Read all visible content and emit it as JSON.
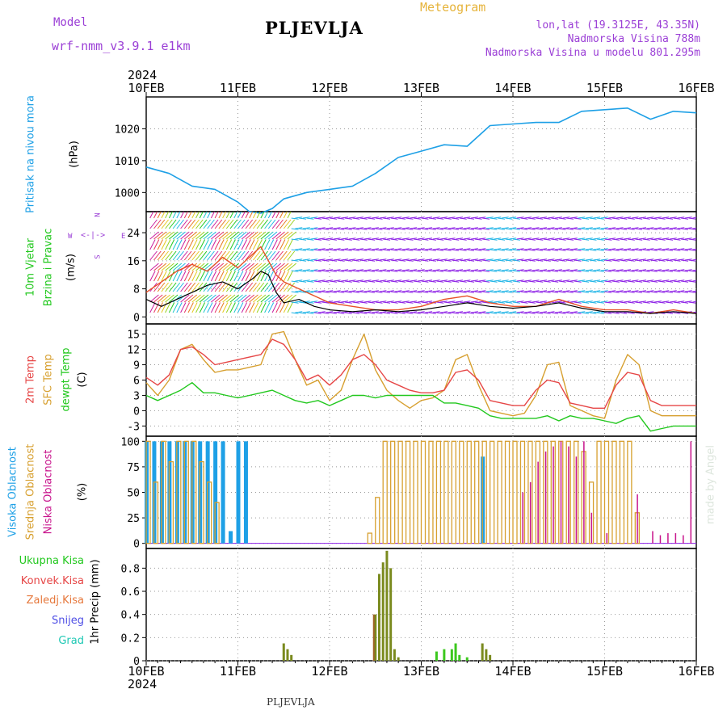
{
  "header": {
    "model_label": "Model",
    "model_name": "wrf-nmm_v3.9.1 e1km",
    "city": "PLJEVLJA",
    "chart_title": "Meteogram",
    "coords": "lon,lat (19.3125E, 43.35N)",
    "altitude": "Nadmorska Visina 788m",
    "model_altitude": "Nadmorska Visina u modelu 801.295m",
    "year_top": "2024",
    "year_bottom": "2024",
    "footer_city": "PLJEVLJA",
    "credit": "made by Angel"
  },
  "colors": {
    "pressure": "#1ea0e6",
    "t2m": "#e64646",
    "tsfc": "#d7a030",
    "dewpoint": "#22c81e",
    "cloud_high": "#1ea0e6",
    "cloud_mid": "#d7a030",
    "cloud_low": "#c8148c",
    "precip_total": "#7a8a1e",
    "precip_conv": "#a06428",
    "precip_green": "#3cc81e",
    "wind_purple": "#8c1ee6",
    "wind_cyan": "#1eb4e6",
    "gust": "#e65028"
  },
  "axes": {
    "dates": [
      "10FEB",
      "11FEB",
      "12FEB",
      "13FEB",
      "14FEB",
      "15FEB",
      "16FEB"
    ]
  },
  "panels": {
    "pressure": {
      "labels": [
        "Pritisak na nivou mora",
        "(hPa)"
      ],
      "ticks": [
        "1000",
        "1010",
        "1020"
      ]
    },
    "wind": {
      "labels": [
        "10m Vjetar",
        "Brzina i Pravac",
        "(m/s)"
      ],
      "ticks": [
        "0",
        "8",
        "16",
        "24"
      ],
      "rose": {
        "n": "N",
        "s": "S",
        "w": "W",
        "e": "E"
      }
    },
    "temp": {
      "labels": [
        "2m Temp",
        "SFC Temp",
        "dewpt Temp",
        "(C)"
      ],
      "ticks": [
        "-3",
        "0",
        "3",
        "6",
        "9",
        "12",
        "15"
      ]
    },
    "cloud": {
      "labels": [
        "Visoka Oblacnost",
        "Srednja Oblacnost",
        "Niska Oblacnost",
        "(%)"
      ],
      "ticks": [
        "0",
        "25",
        "50",
        "75",
        "100"
      ]
    },
    "precip": {
      "legend": [
        "Ukupna Kisa",
        "Konvek.Kisa",
        "Zaledj.Kisa",
        "Snijeg",
        "Grad"
      ],
      "ylabel": "1hr Precip (mm)",
      "ticks": [
        "0",
        "0.2",
        "0.4",
        "0.6",
        "0.8"
      ]
    }
  },
  "chart_data": [
    {
      "type": "line",
      "panel": "pressure",
      "ylabel": "(hPa)",
      "ylim": [
        994,
        1030
      ],
      "x_hours": [
        0,
        6,
        12,
        18,
        24,
        27,
        30,
        33,
        36,
        42,
        48,
        54,
        60,
        66,
        72,
        78,
        84,
        90,
        96,
        102,
        108,
        114,
        120,
        126,
        132,
        138,
        144
      ],
      "series": [
        {
          "name": "Pritisak na nivou mora",
          "values": [
            1008,
            1006,
            1002,
            1001,
            997,
            994,
            993.5,
            995,
            998,
            1000,
            1001,
            1002,
            1006,
            1011,
            1013,
            1015,
            1014.5,
            1021,
            1021.5,
            1022,
            1022,
            1025.5,
            1026,
            1026.5,
            1023,
            1025.5,
            1025
          ]
        }
      ],
      "grid": true
    },
    {
      "type": "line",
      "panel": "wind",
      "ylabel": "(m/s)",
      "ylim": [
        -2,
        30
      ],
      "x_hours": [
        0,
        4,
        8,
        12,
        16,
        20,
        24,
        28,
        30,
        32,
        34,
        36,
        40,
        44,
        48,
        54,
        60,
        66,
        72,
        78,
        84,
        90,
        96,
        102,
        108,
        114,
        120,
        126,
        132,
        138,
        144
      ],
      "series": [
        {
          "name": "10m Vjetar",
          "values": [
            5,
            3,
            5,
            7,
            9,
            10,
            8,
            11,
            13,
            12,
            7,
            4,
            5,
            3,
            2,
            1.5,
            2,
            1.5,
            2,
            3,
            4,
            3,
            2.5,
            3,
            4,
            2.5,
            1.5,
            1.5,
            1,
            1.5,
            1
          ]
        },
        {
          "values": [
            7,
            10,
            13,
            15,
            13,
            17,
            14,
            18,
            20,
            16,
            12,
            10,
            8,
            6,
            4,
            3,
            2,
            2,
            3,
            5,
            6,
            4,
            3,
            3,
            5,
            3,
            2,
            2,
            1,
            2,
            1
          ]
        }
      ],
      "wind_direction_arrows": true,
      "grid": true
    },
    {
      "type": "line",
      "panel": "temp",
      "ylabel": "(C)",
      "ylim": [
        -5,
        17
      ],
      "x_hours": [
        0,
        3,
        6,
        9,
        12,
        15,
        18,
        21,
        24,
        27,
        30,
        33,
        36,
        39,
        42,
        45,
        48,
        51,
        54,
        57,
        60,
        63,
        66,
        69,
        72,
        75,
        78,
        81,
        84,
        87,
        90,
        93,
        96,
        99,
        102,
        105,
        108,
        111,
        114,
        117,
        120,
        123,
        126,
        129,
        132,
        135,
        138,
        141,
        144
      ],
      "series": [
        {
          "name": "2m Temp",
          "values": [
            6.5,
            5,
            7,
            12,
            12.5,
            11,
            9,
            9.5,
            10,
            10.5,
            11,
            14,
            13,
            10,
            6,
            7,
            5,
            7,
            10,
            11,
            9,
            6,
            5,
            4,
            3.5,
            3.5,
            4,
            7.5,
            8,
            6,
            2,
            1.5,
            1,
            1,
            4,
            6,
            5.5,
            1.5,
            1,
            0.5,
            0.5,
            5,
            7.5,
            7,
            2,
            1,
            1,
            1,
            1
          ]
        },
        {
          "name": "SFC Temp",
          "values": [
            5.5,
            3,
            6,
            12,
            13,
            10,
            7.5,
            8,
            8,
            8.5,
            9,
            15,
            15.5,
            10,
            5,
            6,
            2,
            4,
            10,
            15,
            8,
            4,
            2,
            0.5,
            2,
            2.5,
            4,
            10,
            11,
            5,
            0,
            -0.5,
            -1,
            -0.5,
            3,
            9,
            9.5,
            1,
            0,
            -1,
            -1.5,
            6,
            11,
            9,
            0,
            -1,
            -1,
            -1,
            -1
          ]
        },
        {
          "name": "dewpt Temp",
          "values": [
            3,
            2,
            3,
            4,
            5.5,
            3.5,
            3.5,
            3,
            2.5,
            3,
            3.5,
            4,
            3,
            2,
            1.5,
            2,
            1,
            2,
            3,
            3,
            2.5,
            3,
            3,
            3,
            3,
            3,
            1.5,
            1.5,
            1,
            0.5,
            -1,
            -1.5,
            -1.5,
            -1.5,
            -1.5,
            -1,
            -2,
            -1,
            -1.5,
            -1.5,
            -2,
            -2.5,
            -1.5,
            -1,
            -4,
            -3.5,
            -3,
            -3,
            -3
          ]
        }
      ],
      "grid": true
    },
    {
      "type": "bar",
      "panel": "cloud",
      "ylabel": "(%)",
      "ylim": [
        -5,
        105
      ],
      "x_hours": [
        0,
        2,
        4,
        6,
        8,
        10,
        12,
        14,
        16,
        18,
        20,
        22,
        24,
        26,
        28,
        30,
        32,
        34,
        36,
        38,
        40,
        42,
        44,
        46,
        48,
        50,
        52,
        54,
        56,
        58,
        60,
        62,
        64,
        66,
        68,
        70,
        72,
        74,
        76,
        78,
        80,
        82,
        84,
        86,
        88,
        90,
        92,
        94,
        96,
        98,
        100,
        102,
        104,
        106,
        108,
        110,
        112,
        114,
        116,
        118,
        120,
        122,
        124,
        126,
        128,
        130,
        132,
        134,
        136,
        138,
        140,
        142,
        144
      ],
      "series": [
        {
          "name": "Visoka Oblacnost",
          "values": [
            100,
            100,
            100,
            100,
            100,
            100,
            100,
            100,
            100,
            100,
            100,
            12,
            100,
            100,
            0,
            0,
            0,
            0,
            0,
            0,
            0,
            0,
            0,
            0,
            0,
            0,
            0,
            0,
            0,
            0,
            0,
            0,
            0,
            0,
            0,
            0,
            0,
            0,
            0,
            0,
            0,
            0,
            0,
            0,
            85,
            0,
            0,
            0,
            0,
            0,
            0,
            0,
            0,
            0,
            0,
            0,
            0,
            0,
            0,
            0,
            0,
            0,
            0,
            0,
            0,
            0,
            0,
            0,
            0,
            0,
            0,
            0,
            0
          ]
        },
        {
          "name": "Srednja Oblacnost",
          "values": [
            100,
            60,
            100,
            80,
            100,
            100,
            100,
            80,
            60,
            40,
            0,
            0,
            0,
            0,
            0,
            0,
            0,
            0,
            0,
            0,
            0,
            0,
            0,
            0,
            0,
            0,
            0,
            0,
            0,
            10,
            45,
            100,
            100,
            100,
            100,
            100,
            100,
            100,
            100,
            100,
            100,
            100,
            100,
            100,
            100,
            100,
            100,
            100,
            100,
            100,
            100,
            100,
            100,
            100,
            100,
            100,
            100,
            90,
            60,
            100,
            100,
            100,
            100,
            100,
            30,
            0,
            0,
            0,
            0,
            0,
            0,
            0,
            0
          ]
        },
        {
          "name": "Niska Oblacnost",
          "values": [
            0,
            0,
            0,
            0,
            0,
            0,
            0,
            0,
            0,
            0,
            0,
            0,
            0,
            0,
            0,
            0,
            0,
            0,
            0,
            0,
            0,
            0,
            0,
            0,
            0,
            0,
            0,
            0,
            0,
            0,
            0,
            0,
            0,
            0,
            0,
            0,
            0,
            0,
            0,
            0,
            0,
            0,
            0,
            0,
            0,
            0,
            0,
            0,
            0,
            50,
            60,
            80,
            90,
            95,
            100,
            95,
            85,
            100,
            30,
            0,
            10,
            0,
            0,
            0,
            48,
            0,
            12,
            8,
            10,
            10,
            8,
            100,
            0
          ]
        }
      ],
      "grid": true
    },
    {
      "type": "bar",
      "panel": "precip",
      "ylabel": "1hr Precip (mm)",
      "ylim": [
        0,
        0.97
      ],
      "x_hours": [
        36,
        37,
        38,
        60,
        61,
        62,
        63,
        64,
        65,
        66,
        76,
        78,
        80,
        81,
        82,
        84,
        88,
        89,
        90
      ],
      "series": [
        {
          "name": "Ukupna Kisa",
          "values": [
            0.15,
            0.1,
            0.05,
            0.4,
            0.75,
            0.85,
            0.95,
            0.8,
            0.1,
            0.03,
            0.08,
            0.1,
            0.1,
            0.15,
            0.05,
            0.03,
            0.15,
            0.1,
            0.05
          ]
        },
        {
          "name": "Konvek.Kisa",
          "values": [
            0,
            0,
            0,
            0.4,
            0,
            0,
            0,
            0,
            0,
            0,
            0,
            0,
            0,
            0,
            0,
            0,
            0,
            0,
            0
          ]
        }
      ],
      "grid": true
    }
  ]
}
